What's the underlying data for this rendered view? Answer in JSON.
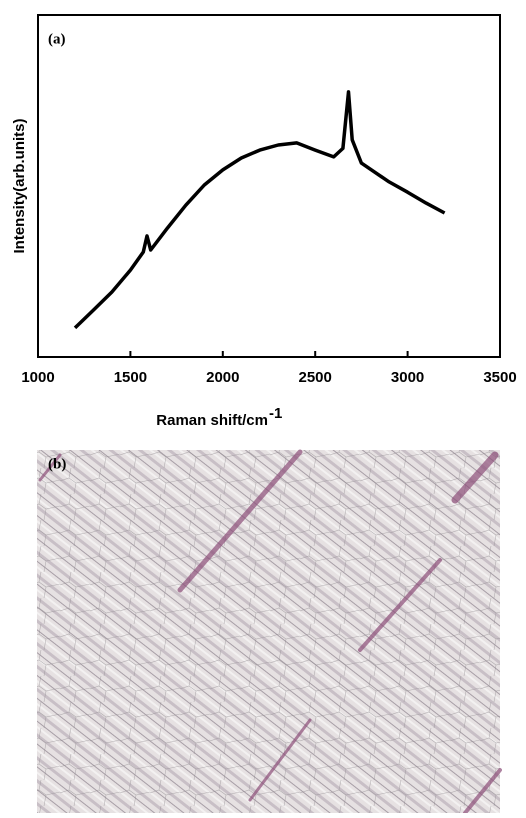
{
  "chart_data": {
    "type": "line",
    "panel_label": "(a)",
    "xlabel": "Raman shift/cm",
    "xlabel_superscript": "-1",
    "ylabel": "Intensity(arb.units)",
    "x": [
      1200,
      1300,
      1400,
      1500,
      1570,
      1590,
      1610,
      1700,
      1800,
      1900,
      2000,
      2100,
      2200,
      2300,
      2400,
      2500,
      2600,
      2650,
      2680,
      2700,
      2750,
      2900,
      3000,
      3100,
      3200
    ],
    "values": [
      8.5,
      13.7,
      19,
      25.4,
      30.7,
      35.4,
      31.3,
      37.7,
      44.4,
      50.3,
      54.7,
      58.2,
      60.5,
      62,
      62.6,
      60.5,
      58.5,
      61,
      77.5,
      63.5,
      56.7,
      51.2,
      48.2,
      45,
      42.1
    ],
    "color": "#000000",
    "xlim": [
      1000,
      3500
    ],
    "xticks": [
      1000,
      1500,
      2000,
      2500,
      3000,
      3500
    ],
    "ylim": [
      0,
      100
    ]
  },
  "image": {
    "label": "(b)"
  }
}
